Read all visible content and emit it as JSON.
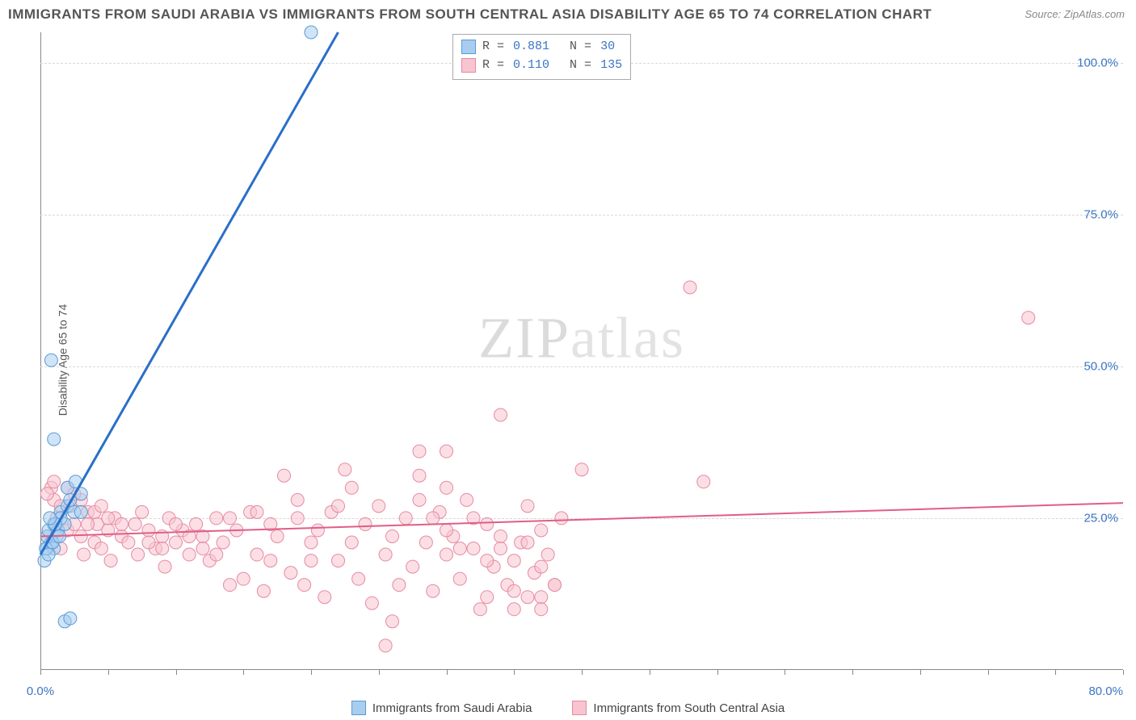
{
  "title": "IMMIGRANTS FROM SAUDI ARABIA VS IMMIGRANTS FROM SOUTH CENTRAL ASIA DISABILITY AGE 65 TO 74 CORRELATION CHART",
  "source": "Source: ZipAtlas.com",
  "ylabel": "Disability Age 65 to 74",
  "watermark_bold": "ZIP",
  "watermark_thin": "atlas",
  "colors": {
    "title": "#555555",
    "source": "#888888",
    "grid": "#d8d8d8",
    "axis": "#888888",
    "blue_link": "#3b74c4",
    "series_a_fill": "#a8cdf0",
    "series_a_stroke": "#5a9bd4",
    "series_a_line": "#2a6fc9",
    "series_b_fill": "#f7c4d0",
    "series_b_stroke": "#e68aa3",
    "series_b_line": "#e15d86",
    "ytick_blue": "#3b74c4"
  },
  "chart": {
    "type": "scatter",
    "xlim": [
      0,
      80
    ],
    "ylim": [
      0,
      105
    ],
    "y_gridlines": [
      25,
      50,
      75,
      100
    ],
    "yticks": [
      {
        "v": 25,
        "label": "25.0%"
      },
      {
        "v": 50,
        "label": "50.0%"
      },
      {
        "v": 75,
        "label": "75.0%"
      },
      {
        "v": 100,
        "label": "100.0%"
      }
    ],
    "xticks_minor": [
      0,
      5,
      10,
      15,
      20,
      25,
      30,
      35,
      40,
      45,
      50,
      55,
      60,
      65,
      70,
      75,
      80
    ],
    "x_label_left": {
      "v": 0,
      "label": "0.0%"
    },
    "x_label_right": {
      "v": 80,
      "label": "80.0%"
    },
    "marker_radius": 8,
    "marker_opacity": 0.55,
    "line_width_a": 3,
    "line_width_b": 2
  },
  "series_a": {
    "name": "Immigrants from Saudi Arabia",
    "R": "0.881",
    "N": "30",
    "trend": {
      "x1": 0,
      "y1": 19,
      "x2": 22,
      "y2": 105
    },
    "points": [
      [
        0.3,
        18
      ],
      [
        0.5,
        20
      ],
      [
        0.8,
        21
      ],
      [
        0.5,
        22
      ],
      [
        0.6,
        23
      ],
      [
        1.0,
        24
      ],
      [
        1.2,
        22
      ],
      [
        1.5,
        26
      ],
      [
        1.0,
        20
      ],
      [
        1.3,
        23
      ],
      [
        1.8,
        24
      ],
      [
        2.0,
        27
      ],
      [
        2.2,
        28
      ],
      [
        2.5,
        26
      ],
      [
        2.0,
        30
      ],
      [
        2.6,
        31
      ],
      [
        3.0,
        29
      ],
      [
        1.8,
        8
      ],
      [
        2.2,
        8.5
      ],
      [
        3.0,
        26
      ],
      [
        1.0,
        38
      ],
      [
        0.8,
        51
      ],
      [
        1.5,
        25
      ],
      [
        20,
        105
      ],
      [
        0.4,
        20
      ],
      [
        0.6,
        19
      ],
      [
        0.9,
        21
      ],
      [
        1.1,
        24
      ],
      [
        1.4,
        22
      ],
      [
        0.7,
        25
      ]
    ]
  },
  "series_b": {
    "name": "Immigrants from South Central Asia",
    "R": "0.110",
    "N": "135",
    "trend": {
      "x1": 0,
      "y1": 22,
      "x2": 80,
      "y2": 27.5
    },
    "points": [
      [
        0.5,
        22
      ],
      [
        0.8,
        30
      ],
      [
        1,
        28
      ],
      [
        1.2,
        25
      ],
      [
        1.5,
        20
      ],
      [
        2,
        23
      ],
      [
        2.2,
        27
      ],
      [
        2.5,
        24
      ],
      [
        3,
        22
      ],
      [
        3.2,
        19
      ],
      [
        3.5,
        26
      ],
      [
        4,
        21
      ],
      [
        4.2,
        24
      ],
      [
        4.5,
        20
      ],
      [
        5,
        23
      ],
      [
        5.2,
        18
      ],
      [
        5.5,
        25
      ],
      [
        6,
        22
      ],
      [
        6.5,
        21
      ],
      [
        7,
        24
      ],
      [
        7.2,
        19
      ],
      [
        7.5,
        26
      ],
      [
        8,
        23
      ],
      [
        8.5,
        20
      ],
      [
        9,
        22
      ],
      [
        9.2,
        17
      ],
      [
        9.5,
        25
      ],
      [
        10,
        21
      ],
      [
        10.5,
        23
      ],
      [
        11,
        19
      ],
      [
        11.5,
        24
      ],
      [
        12,
        22
      ],
      [
        12.5,
        18
      ],
      [
        13,
        25
      ],
      [
        13.5,
        21
      ],
      [
        14,
        14
      ],
      [
        14.5,
        23
      ],
      [
        15,
        15
      ],
      [
        15.5,
        26
      ],
      [
        16,
        19
      ],
      [
        16.5,
        13
      ],
      [
        17,
        24
      ],
      [
        17.5,
        22
      ],
      [
        18,
        32
      ],
      [
        18.5,
        16
      ],
      [
        19,
        25
      ],
      [
        19.5,
        14
      ],
      [
        20,
        21
      ],
      [
        20.5,
        23
      ],
      [
        21,
        12
      ],
      [
        21.5,
        26
      ],
      [
        22,
        18
      ],
      [
        22.5,
        33
      ],
      [
        23,
        21
      ],
      [
        23.5,
        15
      ],
      [
        24,
        24
      ],
      [
        24.5,
        11
      ],
      [
        25,
        27
      ],
      [
        25.5,
        19
      ],
      [
        25.5,
        4
      ],
      [
        26,
        22
      ],
      [
        26,
        8
      ],
      [
        26.5,
        14
      ],
      [
        27,
        25
      ],
      [
        27.5,
        17
      ],
      [
        28,
        32
      ],
      [
        28.5,
        21
      ],
      [
        29,
        13
      ],
      [
        29.5,
        26
      ],
      [
        30,
        19
      ],
      [
        30,
        36
      ],
      [
        30.5,
        22
      ],
      [
        31,
        15
      ],
      [
        31.5,
        28
      ],
      [
        32,
        20
      ],
      [
        32.5,
        10
      ],
      [
        33,
        24
      ],
      [
        33.5,
        17
      ],
      [
        34,
        22
      ],
      [
        34,
        42
      ],
      [
        34.5,
        14
      ],
      [
        35,
        13
      ],
      [
        35.5,
        21
      ],
      [
        36,
        27
      ],
      [
        36.5,
        16
      ],
      [
        37,
        23
      ],
      [
        37,
        12
      ],
      [
        37.5,
        19
      ],
      [
        38,
        14
      ],
      [
        38.5,
        25
      ],
      [
        40,
        33
      ],
      [
        48,
        63
      ],
      [
        49,
        31
      ],
      [
        73,
        58
      ],
      [
        1,
        31
      ],
      [
        2,
        30
      ],
      [
        3,
        28
      ],
      [
        4,
        26
      ],
      [
        5,
        25
      ],
      [
        6,
        24
      ],
      [
        0.5,
        29
      ],
      [
        1.5,
        27
      ],
      [
        2.5,
        29
      ],
      [
        3.5,
        24
      ],
      [
        4.5,
        27
      ],
      [
        28,
        28
      ],
      [
        29,
        25
      ],
      [
        30,
        23
      ],
      [
        31,
        20
      ],
      [
        32,
        25
      ],
      [
        33,
        18
      ],
      [
        34,
        20
      ],
      [
        35,
        18
      ],
      [
        36,
        12
      ],
      [
        37,
        10
      ],
      [
        38,
        14
      ],
      [
        33,
        12
      ],
      [
        35,
        10
      ],
      [
        36,
        21
      ],
      [
        37,
        17
      ],
      [
        28,
        36
      ],
      [
        30,
        30
      ],
      [
        22,
        27
      ],
      [
        23,
        30
      ],
      [
        19,
        28
      ],
      [
        20,
        18
      ],
      [
        16,
        26
      ],
      [
        17,
        18
      ],
      [
        14,
        25
      ],
      [
        13,
        19
      ],
      [
        12,
        20
      ],
      [
        11,
        22
      ],
      [
        10,
        24
      ],
      [
        9,
        20
      ],
      [
        8,
        21
      ]
    ]
  }
}
